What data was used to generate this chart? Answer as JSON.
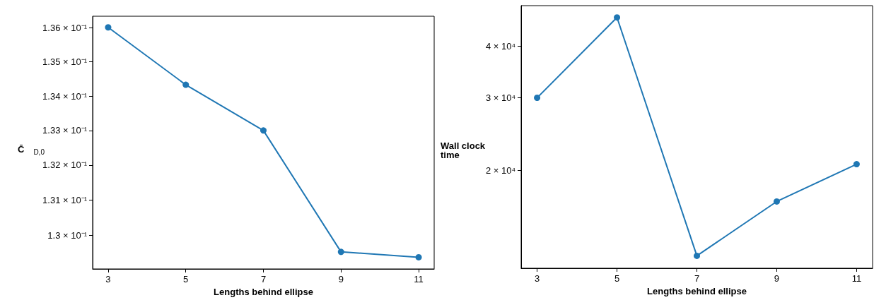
{
  "chart_data": [
    {
      "type": "line",
      "xlabel": "Lengths behind ellipse",
      "ylabel": "C̄$_{D,0}$",
      "x": [
        3,
        5,
        7,
        9,
        11
      ],
      "series": [
        {
          "color": "#1f77b4",
          "values": [
            0.13602,
            0.13433,
            0.133,
            0.12953,
            0.12938
          ]
        }
      ],
      "xlim": [
        2.6,
        11.4
      ],
      "xticks": [
        3,
        5,
        7,
        9,
        11
      ],
      "ylim": [
        0.12905,
        0.13635
      ],
      "yticks": [
        {
          "value": 0.13,
          "label": "1.3 × 10⁻¹"
        },
        {
          "value": 0.131,
          "label": "1.31 × 10⁻¹"
        },
        {
          "value": 0.132,
          "label": "1.32 × 10⁻¹"
        },
        {
          "value": 0.133,
          "label": "1.33 × 10⁻¹"
        },
        {
          "value": 0.134,
          "label": "1.34 × 10⁻¹"
        },
        {
          "value": 0.135,
          "label": "1.35 × 10⁻¹"
        },
        {
          "value": 0.136,
          "label": "1.36 × 10⁻¹"
        }
      ],
      "log": "y",
      "grid": false,
      "marker": "circle",
      "line_style": "solid"
    },
    {
      "type": "line",
      "xlabel": "Lengths behind ellipse",
      "ylabel": "Wall clock time",
      "x": [
        3,
        5,
        7,
        9,
        11
      ],
      "series": [
        {
          "color": "#1f77b4",
          "values": [
            30000,
            47000,
            12400,
            16800,
            20700
          ]
        }
      ],
      "xlim": [
        2.6,
        11.4
      ],
      "xticks": [
        3,
        5,
        7,
        9,
        11
      ],
      "ylim": [
        11570,
        50200
      ],
      "yticks": [
        {
          "value": 20000,
          "label": "2 × 10⁴"
        },
        {
          "value": 30000,
          "label": "3 × 10⁴"
        },
        {
          "value": 40000,
          "label": "4 × 10⁴"
        }
      ],
      "log": "y",
      "grid": false,
      "marker": "circle",
      "line_style": "solid"
    }
  ]
}
